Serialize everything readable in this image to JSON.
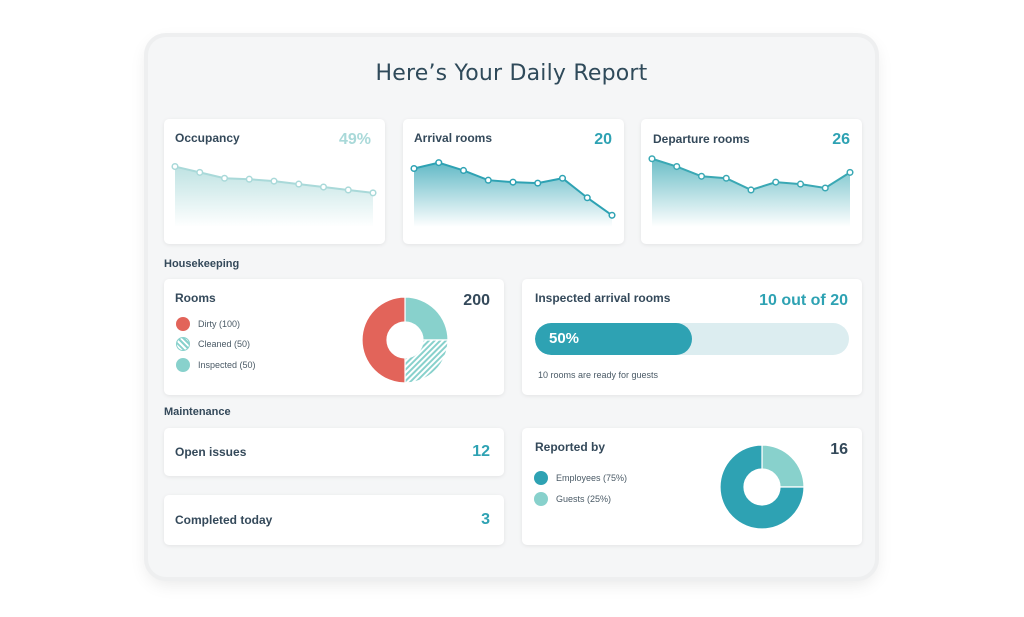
{
  "report": {
    "title": "Here’s Your Daily Report"
  },
  "occupancy": {
    "label": "Occupancy",
    "value": "49%",
    "trend": [
      62,
      56,
      50,
      49,
      47,
      44,
      41,
      38,
      35
    ]
  },
  "arrival": {
    "label": "Arrival rooms",
    "value": "20",
    "trend": [
      60,
      66,
      58,
      48,
      46,
      45,
      50,
      30,
      12
    ]
  },
  "departure": {
    "label": "Departure rooms",
    "value": "26",
    "trend": [
      70,
      62,
      52,
      50,
      38,
      46,
      44,
      40,
      56
    ]
  },
  "housekeeping": {
    "section": "Housekeeping",
    "rooms": {
      "label": "Rooms",
      "total": "200",
      "legend": [
        {
          "text": "Dirty (100)",
          "value": 100,
          "color": "#e2645a",
          "pattern": "solid"
        },
        {
          "text": "Cleaned (50)",
          "value": 50,
          "color": "#88d1cc",
          "pattern": "hatch"
        },
        {
          "text": "Inspected (50)",
          "value": 50,
          "color": "#88d1cc",
          "pattern": "solid"
        }
      ]
    },
    "inspected": {
      "label": "Inspected arrival rooms",
      "value": "10 out of 20",
      "progress_text": "50%",
      "progress": 0.5,
      "note": "10 rooms are ready for guests"
    }
  },
  "maintenance": {
    "section": "Maintenance",
    "open_issues": {
      "label": "Open issues",
      "value": "12"
    },
    "completed": {
      "label": "Completed today",
      "value": "3"
    },
    "reported_by": {
      "label": "Reported by",
      "total": "16",
      "legend": [
        {
          "text": "Employees (75%)",
          "value": 75,
          "color": "#2ea2b3"
        },
        {
          "text": "Guests (25%)",
          "value": 25,
          "color": "#88d1cc"
        }
      ]
    }
  },
  "colors": {
    "accent": "#2ea2b3",
    "accent_light": "#88d1cc",
    "muted": "#a9d9d9",
    "red": "#e2645a"
  }
}
